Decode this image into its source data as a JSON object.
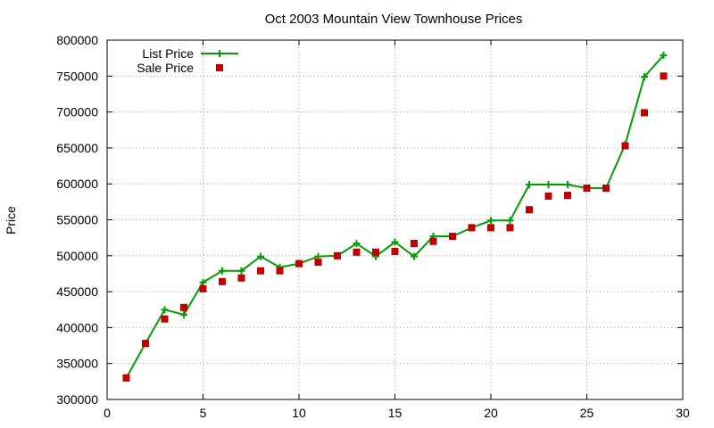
{
  "chart_data": {
    "type": "line",
    "title": "Oct 2003 Mountain View Townhouse Prices",
    "xlabel": "",
    "ylabel": "Price",
    "xlim": [
      0,
      30
    ],
    "ylim": [
      300000,
      800000
    ],
    "xticks": [
      0,
      5,
      10,
      15,
      20,
      25,
      30
    ],
    "yticks": [
      300000,
      350000,
      400000,
      450000,
      500000,
      550000,
      600000,
      650000,
      700000,
      750000,
      800000
    ],
    "grid": true,
    "legend_position": "top-left",
    "x": [
      1,
      2,
      3,
      4,
      5,
      6,
      7,
      8,
      9,
      10,
      11,
      12,
      13,
      14,
      15,
      16,
      17,
      18,
      19,
      20,
      21,
      22,
      23,
      24,
      25,
      26,
      27,
      28,
      29
    ],
    "series": [
      {
        "name": "List Price",
        "style": "lines+points",
        "marker": "plus",
        "color": "#00a000",
        "values": [
          330000,
          378000,
          425000,
          418000,
          463000,
          479000,
          479000,
          499000,
          484000,
          489000,
          499000,
          500000,
          517000,
          499000,
          519000,
          499000,
          527000,
          527000,
          539000,
          549000,
          549000,
          599000,
          599000,
          599000,
          594000,
          594000,
          655000,
          749000,
          779000
        ]
      },
      {
        "name": "Sale Price",
        "style": "points",
        "marker": "square",
        "color": "#c00000",
        "values": [
          330000,
          378000,
          412000,
          428000,
          454000,
          464000,
          469000,
          479000,
          479000,
          489000,
          491000,
          500000,
          505000,
          505000,
          506000,
          517000,
          520000,
          527000,
          539000,
          539000,
          539000,
          564000,
          583000,
          584000,
          594000,
          594000,
          653000,
          699000,
          750000
        ]
      }
    ]
  }
}
